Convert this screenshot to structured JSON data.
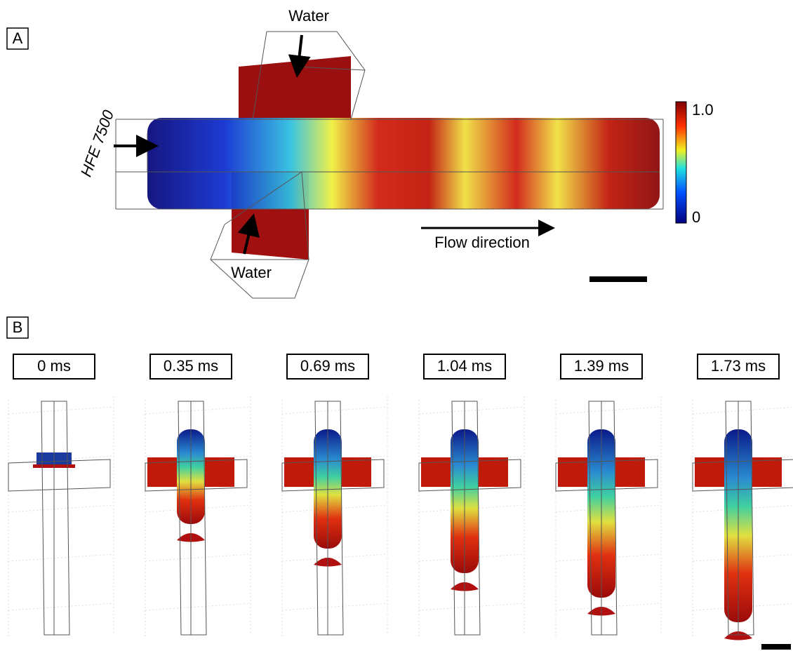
{
  "panel_a": {
    "label": "A",
    "inlet_top": "Water",
    "inlet_bottom": "Water",
    "inlet_left": "HFE 7500",
    "flow_label": "Flow direction",
    "colorbar": {
      "max_label": "1.0",
      "min_label": "0"
    }
  },
  "panel_b": {
    "label": "B",
    "times": [
      "0 ms",
      "0.35 ms",
      "0.69 ms",
      "1.04 ms",
      "1.39 ms",
      "1.73 ms"
    ]
  }
}
